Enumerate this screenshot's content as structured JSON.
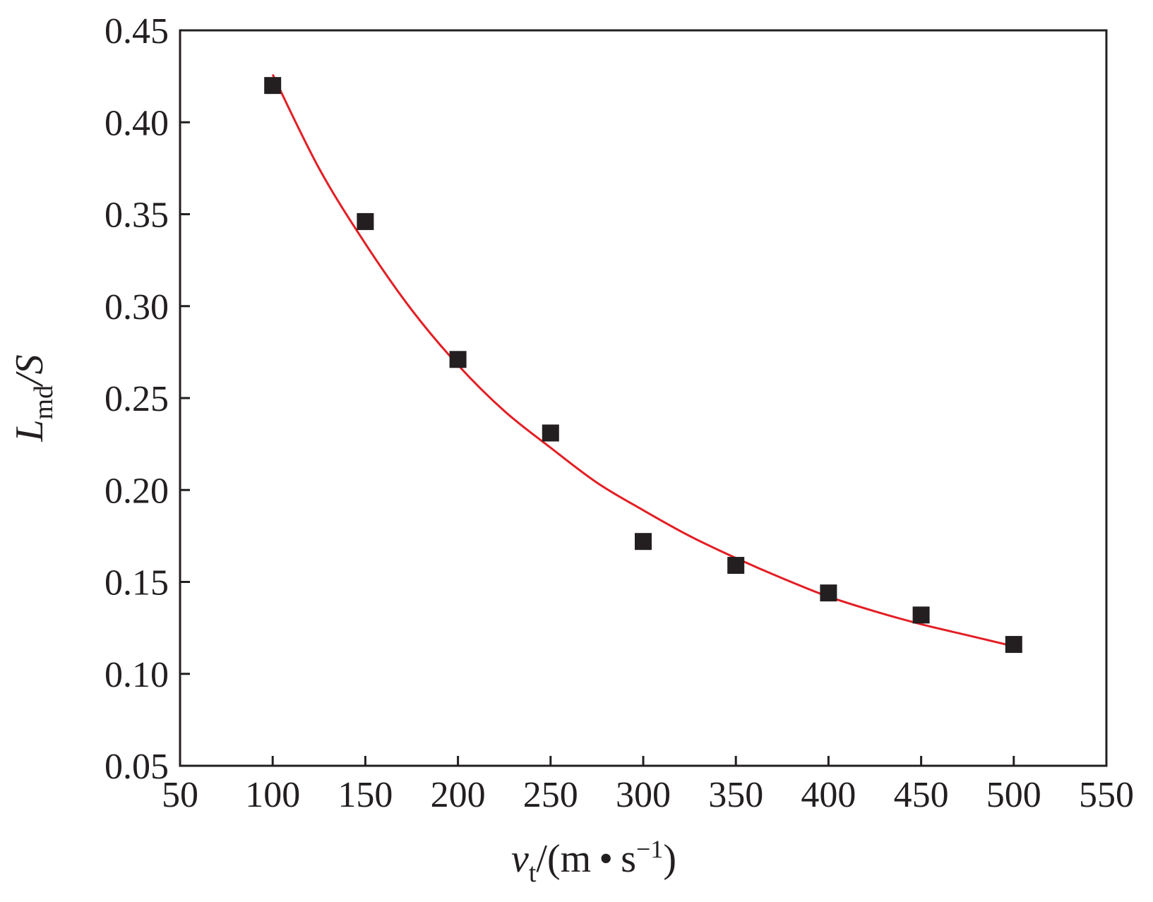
{
  "chart_data": {
    "type": "scatter",
    "title": "",
    "xlabel": {
      "main": "v",
      "sub": "t",
      "rest": "/(m • s",
      "sup": "−1",
      "close": ")"
    },
    "ylabel": {
      "main": "L",
      "sub": "md",
      "rest": "/S"
    },
    "xlim": [
      50,
      550
    ],
    "ylim": [
      0.05,
      0.45
    ],
    "xticks": [
      "50",
      "100",
      "150",
      "200",
      "250",
      "300",
      "350",
      "400",
      "450",
      "500",
      "550"
    ],
    "yticks": [
      "0.05",
      "0.10",
      "0.15",
      "0.20",
      "0.25",
      "0.30",
      "0.35",
      "0.40",
      "0.45"
    ],
    "grid": false,
    "legend": "none",
    "series": [
      {
        "kind": "points",
        "marker": "square",
        "color": "#231f20",
        "x": [
          100,
          150,
          200,
          250,
          300,
          350,
          400,
          450,
          500
        ],
        "y": [
          0.42,
          0.346,
          0.271,
          0.231,
          0.172,
          0.159,
          0.144,
          0.132,
          0.116
        ]
      },
      {
        "kind": "fit-curve",
        "color": "#e31e24",
        "x": [
          100,
          125,
          150,
          175,
          200,
          225,
          250,
          275,
          300,
          325,
          350,
          375,
          400,
          425,
          450,
          475,
          500
        ],
        "y": [
          0.426,
          0.375,
          0.334,
          0.298,
          0.268,
          0.243,
          0.223,
          0.204,
          0.189,
          0.175,
          0.163,
          0.152,
          0.142,
          0.134,
          0.127,
          0.121,
          0.115
        ]
      }
    ]
  }
}
